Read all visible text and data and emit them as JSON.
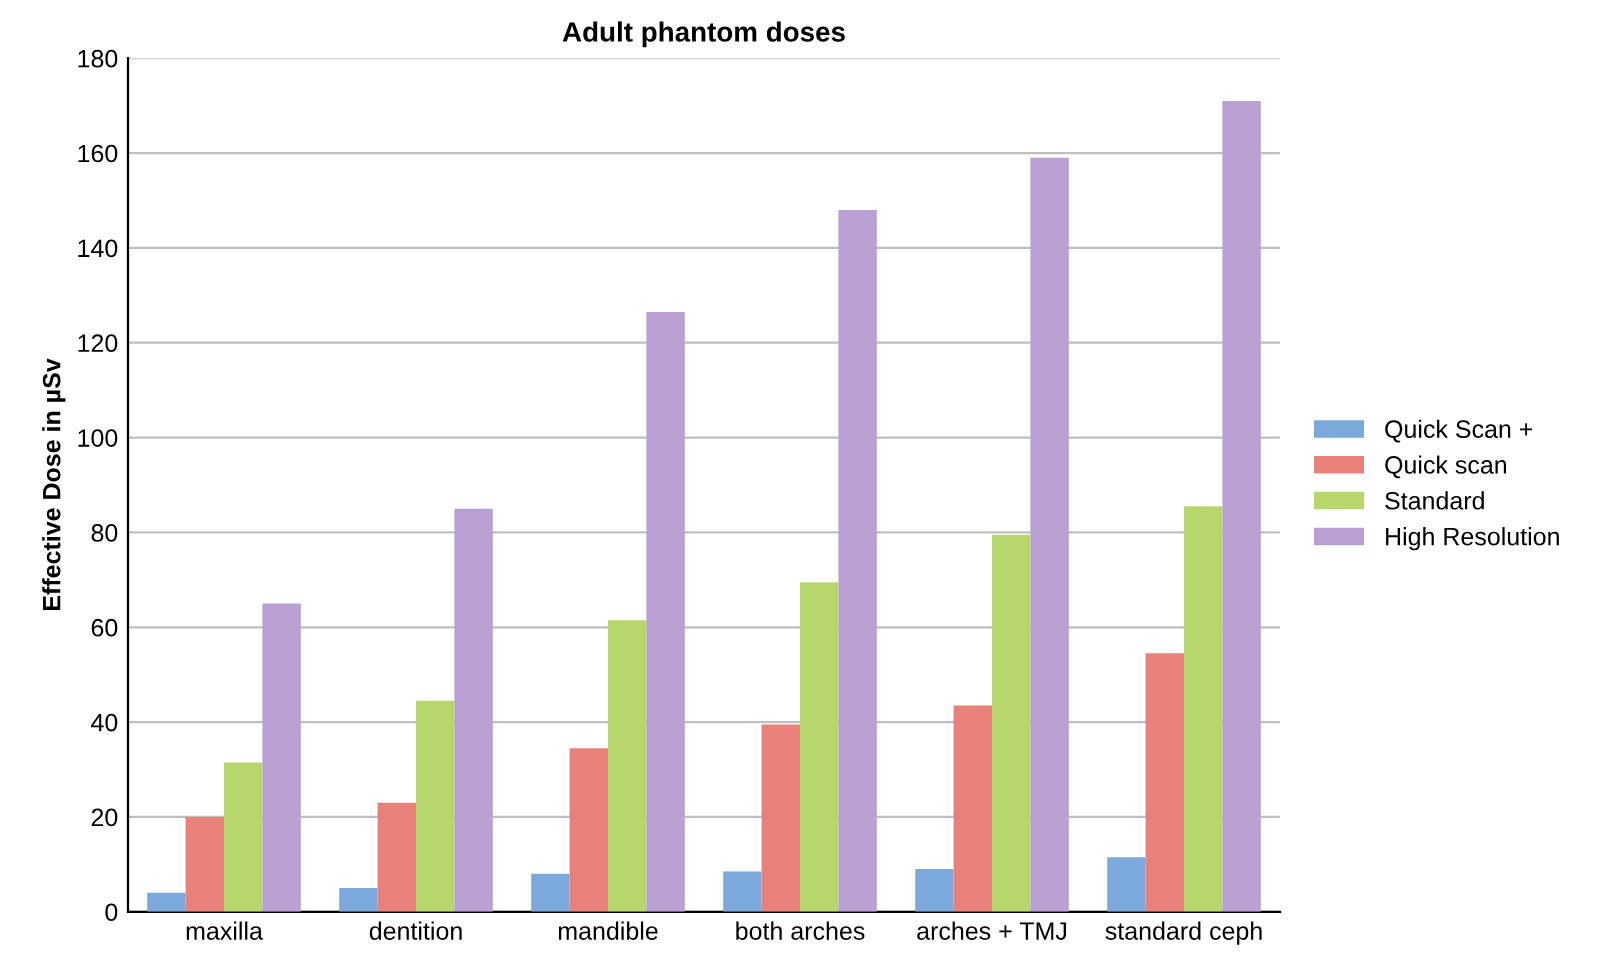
{
  "chart_data": {
    "type": "bar",
    "title": "Adult phantom doses",
    "ylabel": "Effective Dose in µSv",
    "categories": [
      "maxilla",
      "dentition",
      "mandible",
      "both arches",
      "arches + TMJ",
      "standard ceph"
    ],
    "series": [
      {
        "name": "Quick Scan +",
        "color": "#7ba9dc",
        "values": [
          4,
          5,
          8,
          8.5,
          9,
          11.5
        ]
      },
      {
        "name": "Quick scan",
        "color": "#e9817b",
        "values": [
          20,
          23,
          34.5,
          39.5,
          43.5,
          54.5
        ]
      },
      {
        "name": "Standard",
        "color": "#b7d76c",
        "values": [
          31.5,
          44.5,
          61.5,
          69.5,
          79.5,
          85.5
        ]
      },
      {
        "name": "High Resolution",
        "color": "#b9a0d2",
        "values": [
          65,
          85,
          126.5,
          148,
          159,
          171
        ]
      }
    ],
    "ylim": [
      0,
      180
    ],
    "yticks": [
      0,
      20,
      40,
      60,
      80,
      100,
      120,
      140,
      160,
      180
    ],
    "grid": "y",
    "legend": "right"
  }
}
